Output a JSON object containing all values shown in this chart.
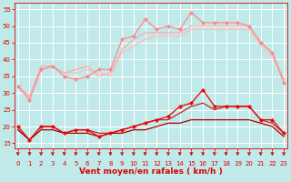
{
  "xlabel": "Vent moyen/en rafales ( km/h )",
  "background_color": "#c0eaea",
  "grid_color": "#ffffff",
  "x": [
    0,
    1,
    2,
    3,
    4,
    5,
    6,
    7,
    8,
    9,
    10,
    11,
    12,
    13,
    14,
    15,
    16,
    17,
    18,
    19,
    20,
    21,
    22,
    23
  ],
  "lines": [
    {
      "y": [
        32,
        28,
        37,
        38,
        35,
        34,
        35,
        37,
        37,
        46,
        47,
        52,
        49,
        50,
        49,
        54,
        51,
        51,
        51,
        51,
        50,
        45,
        42,
        33
      ],
      "color": "#ff8888",
      "marker": "D",
      "markersize": 2.0,
      "linewidth": 0.9,
      "zorder": 4
    },
    {
      "y": [
        32,
        29,
        38,
        38,
        36,
        37,
        38,
        35,
        36,
        43,
        46,
        48,
        48,
        48,
        48,
        50,
        50,
        50,
        50,
        50,
        50,
        45,
        42,
        34
      ],
      "color": "#ffaaaa",
      "marker": null,
      "markersize": 0,
      "linewidth": 0.9,
      "zorder": 3
    },
    {
      "y": [
        32,
        29,
        37,
        38,
        36,
        36,
        37,
        36,
        35,
        42,
        44,
        46,
        47,
        47,
        47,
        49,
        49,
        49,
        49,
        49,
        49,
        44,
        41,
        34
      ],
      "color": "#ffbbbb",
      "marker": null,
      "markersize": 0,
      "linewidth": 0.9,
      "zorder": 2
    },
    {
      "y": [
        20,
        16,
        20,
        20,
        18,
        19,
        19,
        17,
        18,
        19,
        20,
        21,
        22,
        23,
        26,
        27,
        31,
        26,
        26,
        26,
        26,
        22,
        22,
        18
      ],
      "color": "#ee0000",
      "marker": "P",
      "markersize": 2.5,
      "linewidth": 0.9,
      "zorder": 6
    },
    {
      "y": [
        19,
        16,
        20,
        20,
        18,
        19,
        19,
        18,
        18,
        19,
        20,
        21,
        22,
        22,
        24,
        26,
        27,
        25,
        26,
        26,
        26,
        22,
        21,
        18
      ],
      "color": "#cc2222",
      "marker": null,
      "markersize": 0,
      "linewidth": 0.9,
      "zorder": 5
    },
    {
      "y": [
        19,
        16,
        19,
        19,
        18,
        18,
        18,
        17,
        18,
        18,
        19,
        19,
        20,
        21,
        21,
        22,
        22,
        22,
        22,
        22,
        22,
        21,
        20,
        17
      ],
      "color": "#aa0000",
      "marker": null,
      "markersize": 0,
      "linewidth": 0.9,
      "zorder": 5
    }
  ],
  "xlim": [
    -0.3,
    23.3
  ],
  "ylim": [
    13.5,
    57
  ],
  "yticks": [
    15,
    20,
    25,
    30,
    35,
    40,
    45,
    50,
    55
  ],
  "xticks": [
    0,
    1,
    2,
    3,
    4,
    5,
    6,
    7,
    8,
    9,
    10,
    11,
    12,
    13,
    14,
    15,
    16,
    17,
    18,
    19,
    20,
    21,
    22,
    23
  ],
  "tick_color": "#dd0000",
  "tick_fontsize": 5.0,
  "xlabel_fontsize": 6.5,
  "arrow_color": "#cc0000"
}
